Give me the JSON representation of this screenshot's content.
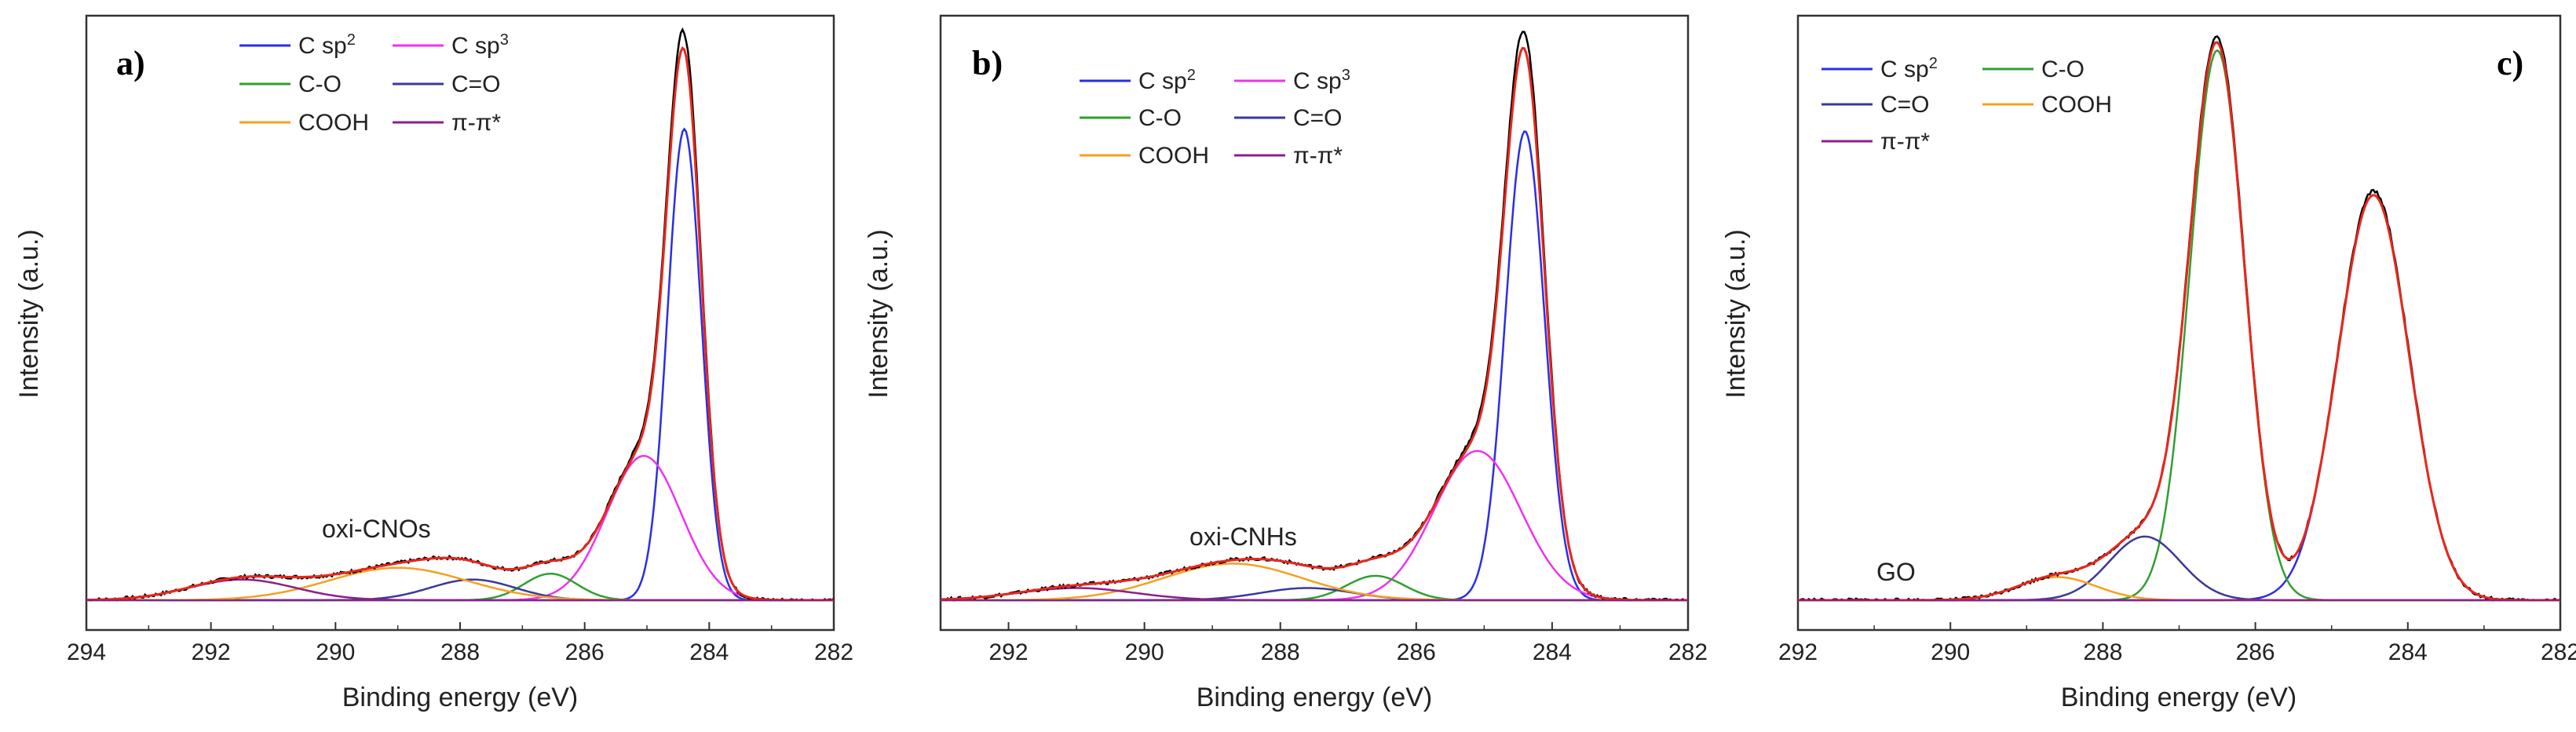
{
  "colors": {
    "total": "#000000",
    "envelope": "#e8271c",
    "csp2": "#2a2ee8",
    "csp3": "#ee33ee",
    "co": "#2fa02f",
    "ceo": "#3a3a9a",
    "cooh": "#f5a020",
    "pipi": "#8a208a"
  },
  "chart_data": [
    {
      "type": "line",
      "panel_label": "a)",
      "annotation": "oxi-CNOs",
      "xlabel": "Binding energy (eV)",
      "ylabel": "Intensity (a.u.)",
      "xlim": [
        294,
        282
      ],
      "ylim": [
        0,
        1
      ],
      "xticks": [
        294,
        292,
        290,
        288,
        286,
        284,
        282
      ],
      "x_reversed": true,
      "legend": {
        "placement": "top-center",
        "entries": [
          {
            "name": "C sp",
            "sup": "2",
            "color_key": "csp2"
          },
          {
            "name": "C sp",
            "sup": "3",
            "color_key": "csp3"
          },
          {
            "name": "C-O",
            "sup": "",
            "color_key": "co"
          },
          {
            "name": "C=O",
            "sup": "",
            "color_key": "ceo"
          },
          {
            "name": "COOH",
            "sup": "",
            "color_key": "cooh"
          },
          {
            "name": "π-π*",
            "sup": "",
            "color_key": "pipi"
          }
        ]
      },
      "components": [
        {
          "name": "C sp2",
          "color_key": "csp2",
          "center": 284.4,
          "height": 0.8,
          "width": 0.32
        },
        {
          "name": "C sp3",
          "color_key": "csp3",
          "center": 285.05,
          "height": 0.245,
          "width": 0.7
        },
        {
          "name": "C-O",
          "color_key": "co",
          "center": 286.55,
          "height": 0.045,
          "width": 0.5
        },
        {
          "name": "C=O",
          "color_key": "ceo",
          "center": 287.8,
          "height": 0.035,
          "width": 0.8
        },
        {
          "name": "COOH",
          "color_key": "cooh",
          "center": 289.0,
          "height": 0.055,
          "width": 1.3
        },
        {
          "name": "π-π*",
          "color_key": "pipi",
          "center": 291.5,
          "height": 0.035,
          "width": 1.0
        }
      ],
      "envelope_peak": 0.96,
      "raw_peak": 0.99
    },
    {
      "type": "line",
      "panel_label": "b)",
      "annotation": "oxi-CNHs",
      "xlabel": "Binding energy (eV)",
      "ylabel": "Intensity (a.u.)",
      "xlim": [
        293,
        282
      ],
      "ylim": [
        0,
        1
      ],
      "xticks": [
        292,
        290,
        288,
        286,
        284,
        282
      ],
      "x_reversed": true,
      "legend": {
        "placement": "top-center",
        "entries": [
          {
            "name": "C sp",
            "sup": "2",
            "color_key": "csp2"
          },
          {
            "name": "C sp",
            "sup": "3",
            "color_key": "csp3"
          },
          {
            "name": "C-O",
            "sup": "",
            "color_key": "co"
          },
          {
            "name": "C=O",
            "sup": "",
            "color_key": "ceo"
          },
          {
            "name": "COOH",
            "sup": "",
            "color_key": "cooh"
          },
          {
            "name": "π-π*",
            "sup": "",
            "color_key": "pipi"
          }
        ]
      },
      "components": [
        {
          "name": "C sp2",
          "color_key": "csp2",
          "center": 284.4,
          "height": 0.77,
          "width": 0.34
        },
        {
          "name": "C sp3",
          "color_key": "csp3",
          "center": 285.1,
          "height": 0.245,
          "width": 0.75
        },
        {
          "name": "C-O",
          "color_key": "co",
          "center": 286.6,
          "height": 0.04,
          "width": 0.5
        },
        {
          "name": "C=O",
          "color_key": "ceo",
          "center": 287.6,
          "height": 0.02,
          "width": 0.8
        },
        {
          "name": "COOH",
          "color_key": "cooh",
          "center": 288.7,
          "height": 0.06,
          "width": 1.2
        },
        {
          "name": "π-π*",
          "color_key": "pipi",
          "center": 291.0,
          "height": 0.02,
          "width": 1.0
        }
      ],
      "envelope_peak": 0.96,
      "raw_peak": 0.99
    },
    {
      "type": "line",
      "panel_label": "c)",
      "annotation": "GO",
      "xlabel": "Binding energy (eV)",
      "ylabel": "Intensity (a.u.)",
      "xlim": [
        292,
        282
      ],
      "ylim": [
        0,
        1
      ],
      "xticks": [
        292,
        290,
        288,
        286,
        284,
        282
      ],
      "x_reversed": true,
      "legend": {
        "placement": "top-left",
        "entries": [
          {
            "name": "C sp",
            "sup": "2",
            "color_key": "csp2"
          },
          {
            "name": "C-O",
            "sup": "",
            "color_key": "co"
          },
          {
            "name": "C=O",
            "sup": "",
            "color_key": "ceo"
          },
          {
            "name": "COOH",
            "sup": "",
            "color_key": "cooh"
          },
          {
            "name": "π-π*",
            "sup": "",
            "color_key": "pipi"
          }
        ]
      },
      "components": [
        {
          "name": "C sp2",
          "color_key": "csp2",
          "center": 284.45,
          "height": 0.7,
          "width": 0.55
        },
        {
          "name": "C-O",
          "color_key": "co",
          "center": 286.5,
          "height": 0.95,
          "width": 0.42
        },
        {
          "name": "C=O",
          "color_key": "ceo",
          "center": 287.45,
          "height": 0.11,
          "width": 0.55
        },
        {
          "name": "COOH",
          "color_key": "cooh",
          "center": 288.6,
          "height": 0.04,
          "width": 0.6
        },
        {
          "name": "π-π*",
          "color_key": "pipi",
          "center": 290.5,
          "height": 0.0,
          "width": 1.0
        }
      ],
      "envelope_peak": 0.97,
      "raw_peak": 0.98
    }
  ]
}
